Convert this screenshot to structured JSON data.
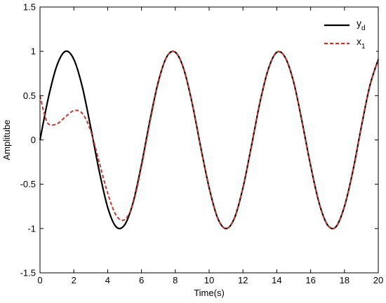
{
  "chart_data": {
    "type": "line",
    "xlabel": "Time(s)",
    "ylabel": "Amplitube",
    "xlim": [
      0,
      20
    ],
    "ylim": [
      -1.5,
      1.5
    ],
    "xticks": [
      "0",
      "2",
      "4",
      "6",
      "8",
      "10",
      "12",
      "14",
      "16",
      "18",
      "20"
    ],
    "yticks": [
      "-1.5",
      "-1",
      "-0.5",
      "0",
      "0.5",
      "1",
      "1.5"
    ],
    "grid": false,
    "legend_position": "top-right",
    "series": [
      {
        "name": "y",
        "subscript": "d",
        "color": "#000000",
        "style": "solid",
        "x": [
          0,
          0.5,
          1.0,
          1.5,
          2.0,
          2.5,
          3.0,
          3.5,
          4.0,
          4.5,
          5.0,
          5.5,
          6.0,
          6.5,
          7.0,
          7.5,
          8.0,
          8.5,
          9.0,
          9.5,
          10.0,
          10.5,
          11.0,
          11.5,
          12.0,
          12.5,
          13.0,
          13.5,
          14.0,
          14.5,
          15.0,
          15.5,
          16.0,
          16.5,
          17.0,
          17.5,
          18.0,
          18.5,
          19.0,
          19.5,
          20.0
        ],
        "y": [
          0.0,
          0.48,
          0.84,
          1.0,
          0.91,
          0.6,
          0.14,
          -0.35,
          -0.76,
          -0.98,
          -0.96,
          -0.71,
          -0.28,
          0.22,
          0.66,
          0.94,
          0.99,
          0.8,
          0.41,
          -0.08,
          -0.54,
          -0.88,
          -1.0,
          -0.88,
          -0.54,
          -0.07,
          0.42,
          0.8,
          0.99,
          0.93,
          0.65,
          0.2,
          -0.29,
          -0.71,
          -0.96,
          -0.98,
          -0.75,
          -0.35,
          0.15,
          0.61,
          0.91
        ]
      },
      {
        "name": "x",
        "subscript": "1",
        "color": "#c0392b",
        "style": "dashed",
        "x": [
          0,
          0.25,
          0.5,
          1.0,
          1.5,
          2.0,
          2.5,
          3.0,
          3.5,
          4.0,
          4.5,
          5.0,
          5.5,
          6.0,
          6.5,
          7.0,
          7.5,
          8.0,
          8.5,
          9.0,
          9.5,
          10.0,
          10.5,
          11.0,
          11.5,
          12.0,
          12.5,
          13.0,
          13.5,
          14.0,
          14.5,
          15.0,
          15.5,
          16.0,
          16.5,
          17.0,
          17.5,
          18.0,
          18.5,
          19.0,
          19.5,
          20.0
        ],
        "y": [
          0.5,
          0.3,
          0.18,
          0.18,
          0.26,
          0.33,
          0.3,
          0.1,
          -0.25,
          -0.6,
          -0.85,
          -0.9,
          -0.72,
          -0.3,
          0.2,
          0.65,
          0.94,
          0.99,
          0.8,
          0.41,
          -0.08,
          -0.54,
          -0.88,
          -1.0,
          -0.88,
          -0.54,
          -0.07,
          0.42,
          0.8,
          0.99,
          0.93,
          0.65,
          0.2,
          -0.29,
          -0.71,
          -0.96,
          -0.98,
          -0.75,
          -0.35,
          0.15,
          0.61,
          0.91
        ]
      }
    ]
  }
}
